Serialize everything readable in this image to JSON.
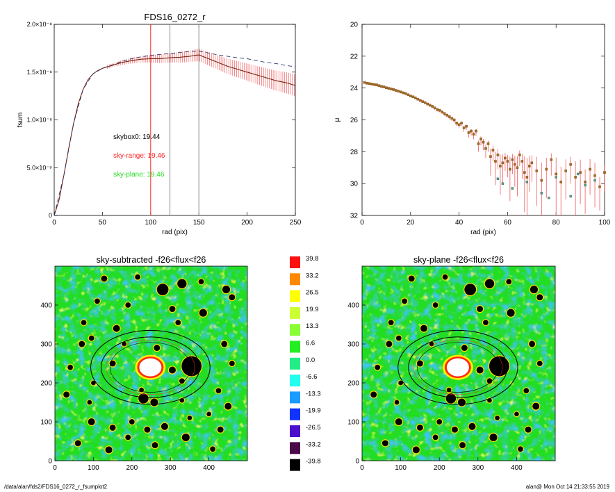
{
  "footer": {
    "left": "/data/alan/fds2/FDS16_0272_r_fsumplot2",
    "right": "alan@  Mon Oct 14 21:33:55 2019"
  },
  "colors": {
    "sky_range": "#ff2222",
    "sky_plane": "#22dd22",
    "errorbar": "#ee4444",
    "curve_dark": "#7a1f10",
    "dashed": "#2a3a6a",
    "map_background": "#22dd22",
    "mask": "#000000",
    "core": "#ffffff"
  },
  "chart_data": [
    {
      "id": "fsum-profile",
      "type": "line",
      "title": "FDS16_0272_r",
      "xlabel": "rad (pix)",
      "ylabel": "fsum",
      "xlim": [
        0,
        250
      ],
      "ylim": [
        0,
        2e-08
      ],
      "xticks": [
        0,
        50,
        100,
        150,
        200,
        250
      ],
      "yticks": [
        {
          "value": 0,
          "label": "0"
        },
        {
          "value": 5e-09,
          "label": "5.0×10⁻⁹"
        },
        {
          "value": 1e-08,
          "label": "1.0×10⁻⁸"
        },
        {
          "value": 1.5e-08,
          "label": "1.5×10⁻⁸"
        },
        {
          "value": 2e-08,
          "label": "2.0×10⁻⁸"
        }
      ],
      "vertical_lines": [
        {
          "x": 100,
          "color": "red"
        },
        {
          "x": 120,
          "color": "gray"
        },
        {
          "x": 150,
          "color": "gray"
        }
      ],
      "annotations": [
        {
          "text": "skybox0: 19.44",
          "color": "black"
        },
        {
          "text": "sky-range: 19.46",
          "color": "red"
        },
        {
          "text": "sky-plane: 19.46",
          "color": "green"
        }
      ],
      "series": [
        {
          "style": "solid",
          "x": [
            0,
            5,
            10,
            15,
            20,
            25,
            30,
            35,
            40,
            45,
            50,
            60,
            70,
            80,
            90,
            100,
            110,
            120,
            130,
            140,
            150,
            160,
            170,
            180,
            190,
            200,
            210,
            220,
            230,
            240,
            250
          ],
          "y": [
            0,
            1.6e-09,
            4.2e-09,
            7e-09,
            9.6e-09,
            1.17e-08,
            1.32e-08,
            1.42e-08,
            1.48e-08,
            1.515e-08,
            1.54e-08,
            1.57e-08,
            1.6e-08,
            1.62e-08,
            1.635e-08,
            1.64e-08,
            1.64e-08,
            1.65e-08,
            1.655e-08,
            1.665e-08,
            1.68e-08,
            1.64e-08,
            1.6e-08,
            1.56e-08,
            1.53e-08,
            1.5e-08,
            1.47e-08,
            1.44e-08,
            1.41e-08,
            1.39e-08,
            1.36e-08
          ]
        },
        {
          "style": "dashed",
          "x": [
            0,
            10,
            20,
            30,
            40,
            50,
            60,
            70,
            80,
            90,
            100,
            110,
            120,
            130,
            140,
            150,
            160,
            170,
            180,
            190,
            200,
            210,
            220,
            230,
            240,
            250
          ],
          "y": [
            0,
            4.2e-09,
            9.6e-09,
            1.32e-08,
            1.48e-08,
            1.54e-08,
            1.575e-08,
            1.61e-08,
            1.64e-08,
            1.66e-08,
            1.675e-08,
            1.685e-08,
            1.695e-08,
            1.705e-08,
            1.715e-08,
            1.72e-08,
            1.7e-08,
            1.68e-08,
            1.665e-08,
            1.65e-08,
            1.64e-08,
            1.62e-08,
            1.6e-08,
            1.59e-08,
            1.57e-08,
            1.555e-08
          ]
        }
      ],
      "errorbars": {
        "x": [
          60,
          70,
          80,
          90,
          100,
          110,
          120,
          130,
          140,
          150,
          160,
          170,
          180,
          190,
          200,
          210,
          220,
          230,
          240,
          250
        ],
        "err": [
          2e-10,
          2.5e-10,
          3e-10,
          3.5e-10,
          4e-10,
          4.5e-10,
          5e-10,
          5.5e-10,
          6e-10,
          6.5e-10,
          7e-10,
          7.5e-10,
          8e-10,
          8.5e-10,
          9e-10,
          9.5e-10,
          1e-09,
          1.05e-09,
          1.1e-09,
          1.15e-09
        ]
      }
    },
    {
      "id": "mu-profile",
      "type": "scatter",
      "title": "",
      "xlabel": "rad (pix)",
      "ylabel": "μ",
      "xlim": [
        0,
        100
      ],
      "ylim": [
        32,
        20
      ],
      "xticks": [
        0,
        20,
        40,
        60,
        80,
        100
      ],
      "yticks": [
        20,
        22,
        24,
        26,
        28,
        30,
        32
      ],
      "points": {
        "x": [
          1,
          2,
          3,
          4,
          5,
          6,
          7,
          8,
          9,
          10,
          11,
          12,
          13,
          14,
          15,
          16,
          17,
          18,
          19,
          20,
          21,
          22,
          23,
          24,
          25,
          26,
          27,
          28,
          29,
          30,
          31,
          32,
          33,
          34,
          35,
          36,
          37,
          38,
          39,
          40,
          41,
          42,
          43,
          44,
          45,
          46,
          47,
          48,
          49,
          50,
          51,
          52,
          53,
          54,
          55,
          56,
          57,
          58,
          59,
          60,
          61,
          62,
          63,
          64,
          65,
          66,
          67,
          68,
          69,
          70,
          72,
          74,
          76,
          78,
          80,
          82,
          84,
          86,
          88,
          90,
          92,
          94,
          96,
          98,
          100
        ],
        "y": [
          23.65,
          23.7,
          23.72,
          23.75,
          23.78,
          23.8,
          23.85,
          23.9,
          23.93,
          23.98,
          24.02,
          24.06,
          24.1,
          24.15,
          24.2,
          24.25,
          24.3,
          24.35,
          24.42,
          24.5,
          24.55,
          24.62,
          24.7,
          24.78,
          24.85,
          24.92,
          25.0,
          25.08,
          25.15,
          25.25,
          25.35,
          25.4,
          25.5,
          25.6,
          25.7,
          25.8,
          25.9,
          26.0,
          26.2,
          26.3,
          26.2,
          26.5,
          26.4,
          26.8,
          26.7,
          26.9,
          26.7,
          27.5,
          27.2,
          27.4,
          27.8,
          27.5,
          28.3,
          27.9,
          28.6,
          28.2,
          28.9,
          28.7,
          28.4,
          28.6,
          29.1,
          28.5,
          28.8,
          29.0,
          28.2,
          28.6,
          29.3,
          29.6,
          28.9,
          28.7,
          29.2,
          29.8,
          29.1,
          28.5,
          29.4,
          29.9,
          29.2,
          28.8,
          29.6,
          29.3,
          29.9,
          29.1,
          29.5,
          30.2,
          29.3
        ],
        "err": [
          0.03,
          0.03,
          0.03,
          0.03,
          0.03,
          0.03,
          0.03,
          0.03,
          0.03,
          0.04,
          0.04,
          0.04,
          0.04,
          0.04,
          0.05,
          0.05,
          0.05,
          0.05,
          0.06,
          0.06,
          0.06,
          0.07,
          0.07,
          0.08,
          0.08,
          0.09,
          0.09,
          0.1,
          0.1,
          0.11,
          0.12,
          0.12,
          0.13,
          0.14,
          0.15,
          0.16,
          0.17,
          0.18,
          0.2,
          0.22,
          0.2,
          0.25,
          0.24,
          0.3,
          0.28,
          0.32,
          0.3,
          0.5,
          0.4,
          0.5,
          0.6,
          0.5,
          1.2,
          0.7,
          1.5,
          0.9,
          1.8,
          1.3,
          0.8,
          1.0,
          2.0,
          0.9,
          1.4,
          1.8,
          0.7,
          1.1,
          2.5,
          3.0,
          1.6,
          1.2,
          2.2,
          2.8,
          1.8,
          1.0,
          2.6,
          2.4,
          1.8,
          1.2,
          2.5,
          2.0,
          2.0,
          1.6,
          2.0,
          1.5,
          1.2
        ]
      }
    },
    {
      "id": "sky-subtracted-map",
      "type": "heatmap",
      "title": "sky-subtracted -f26<flux<f26",
      "xlim": [
        0,
        500
      ],
      "ylim": [
        0,
        500
      ],
      "xticks": [
        0,
        100,
        200,
        300,
        400
      ],
      "yticks": [
        0,
        100,
        200,
        300,
        400
      ],
      "galaxy_center": [
        248,
        240
      ],
      "ellipses": [
        {
          "a": 155,
          "b": 95
        },
        {
          "a": 128,
          "b": 78
        },
        {
          "a": 105,
          "b": 64
        }
      ],
      "masked_sources": [
        [
          128,
          468,
          8
        ],
        [
          215,
          472,
          7
        ],
        [
          330,
          455,
          12
        ],
        [
          280,
          440,
          15
        ],
        [
          110,
          410,
          7
        ],
        [
          305,
          390,
          8
        ],
        [
          385,
          380,
          10
        ],
        [
          320,
          355,
          7
        ],
        [
          160,
          340,
          9
        ],
        [
          75,
          355,
          7
        ],
        [
          70,
          300,
          8
        ],
        [
          40,
          240,
          7
        ],
        [
          30,
          170,
          8
        ],
        [
          95,
          315,
          7
        ],
        [
          190,
          400,
          7
        ],
        [
          265,
          290,
          8
        ],
        [
          355,
          243,
          26
        ],
        [
          305,
          233,
          9
        ],
        [
          330,
          205,
          7
        ],
        [
          230,
          160,
          13
        ],
        [
          258,
          150,
          10
        ],
        [
          225,
          182,
          6
        ],
        [
          150,
          250,
          8
        ],
        [
          180,
          300,
          6
        ],
        [
          95,
          100,
          9
        ],
        [
          150,
          85,
          8
        ],
        [
          200,
          100,
          7
        ],
        [
          240,
          80,
          8
        ],
        [
          285,
          88,
          9
        ],
        [
          340,
          60,
          10
        ],
        [
          260,
          40,
          8
        ],
        [
          140,
          28,
          9
        ],
        [
          60,
          45,
          8
        ],
        [
          90,
          150,
          6
        ],
        [
          410,
          30,
          7
        ],
        [
          430,
          80,
          8
        ],
        [
          450,
          140,
          9
        ],
        [
          400,
          120,
          6
        ],
        [
          425,
          180,
          7
        ],
        [
          440,
          300,
          8
        ],
        [
          445,
          440,
          10
        ],
        [
          460,
          420,
          8
        ],
        [
          380,
          460,
          7
        ],
        [
          330,
          155,
          6
        ],
        [
          190,
          60,
          7
        ],
        [
          100,
          200,
          6
        ],
        [
          460,
          250,
          7
        ],
        [
          350,
          110,
          6
        ]
      ]
    },
    {
      "id": "color-scale",
      "type": "table",
      "levels": [
        {
          "label": "39.8",
          "color": "#ff1010"
        },
        {
          "label": "33.2",
          "color": "#ff8800"
        },
        {
          "label": "26.5",
          "color": "#ffff00"
        },
        {
          "label": "19.9",
          "color": "#ccff33"
        },
        {
          "label": "13.3",
          "color": "#88ff33"
        },
        {
          "label": "6.6",
          "color": "#22ee22"
        },
        {
          "label": "0.0",
          "color": "#22ee88"
        },
        {
          "label": "-6.6",
          "color": "#22ffee"
        },
        {
          "label": "-13.3",
          "color": "#1a9cff"
        },
        {
          "label": "-19.9",
          "color": "#1133ff"
        },
        {
          "label": "-26.5",
          "color": "#4a10cc"
        },
        {
          "label": "-33.2",
          "color": "#4a0a4a"
        },
        {
          "label": "-39.8",
          "color": "#000000"
        }
      ]
    },
    {
      "id": "sky-plane-map",
      "type": "heatmap",
      "title": "sky-plane -f26<flux<f26",
      "xlim": [
        0,
        500
      ],
      "ylim": [
        0,
        500
      ],
      "xticks": [
        0,
        100,
        200,
        300,
        400
      ],
      "yticks": [
        0,
        100,
        200,
        300,
        400
      ],
      "galaxy_center": [
        248,
        240
      ],
      "ellipses": [
        {
          "a": 155,
          "b": 95
        },
        {
          "a": 128,
          "b": 78
        },
        {
          "a": 105,
          "b": 64
        }
      ],
      "masked_sources": [
        [
          128,
          468,
          8
        ],
        [
          215,
          472,
          7
        ],
        [
          330,
          455,
          12
        ],
        [
          280,
          440,
          15
        ],
        [
          110,
          410,
          7
        ],
        [
          305,
          390,
          8
        ],
        [
          385,
          380,
          10
        ],
        [
          320,
          355,
          7
        ],
        [
          160,
          340,
          9
        ],
        [
          75,
          355,
          7
        ],
        [
          70,
          300,
          8
        ],
        [
          40,
          240,
          7
        ],
        [
          30,
          170,
          8
        ],
        [
          95,
          315,
          7
        ],
        [
          190,
          400,
          7
        ],
        [
          265,
          290,
          8
        ],
        [
          355,
          243,
          26
        ],
        [
          305,
          233,
          9
        ],
        [
          330,
          205,
          7
        ],
        [
          230,
          160,
          13
        ],
        [
          258,
          150,
          10
        ],
        [
          225,
          182,
          6
        ],
        [
          150,
          250,
          8
        ],
        [
          180,
          300,
          6
        ],
        [
          95,
          100,
          9
        ],
        [
          150,
          85,
          8
        ],
        [
          200,
          100,
          7
        ],
        [
          240,
          80,
          8
        ],
        [
          285,
          88,
          9
        ],
        [
          340,
          60,
          10
        ],
        [
          260,
          40,
          8
        ],
        [
          140,
          28,
          9
        ],
        [
          60,
          45,
          8
        ],
        [
          90,
          150,
          6
        ],
        [
          410,
          30,
          7
        ],
        [
          430,
          80,
          8
        ],
        [
          450,
          140,
          9
        ],
        [
          400,
          120,
          6
        ],
        [
          425,
          180,
          7
        ],
        [
          440,
          300,
          8
        ],
        [
          445,
          440,
          10
        ],
        [
          460,
          420,
          8
        ],
        [
          380,
          460,
          7
        ],
        [
          330,
          155,
          6
        ],
        [
          190,
          60,
          7
        ],
        [
          100,
          200,
          6
        ],
        [
          460,
          250,
          7
        ],
        [
          350,
          110,
          6
        ]
      ]
    }
  ]
}
